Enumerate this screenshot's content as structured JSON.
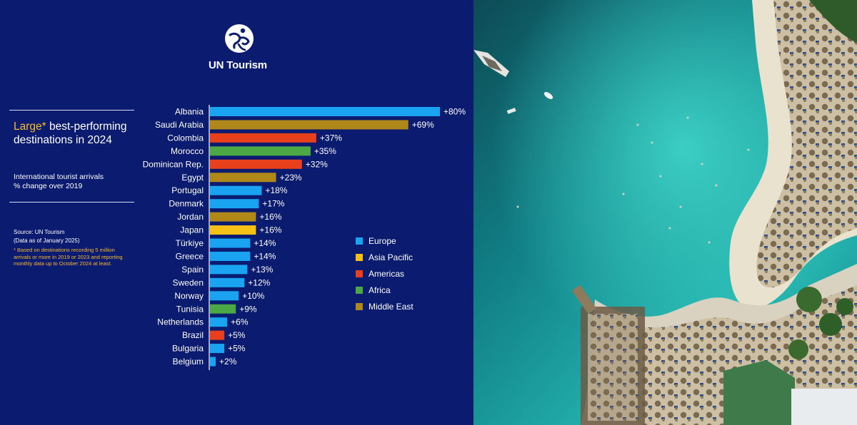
{
  "brand": {
    "name": "UN Tourism"
  },
  "header": {
    "title_highlight": "Large*",
    "title_rest": " best-performing destinations in 2024",
    "subtitle_line1": "International tourist arrivals",
    "subtitle_line2": "% change over 2019"
  },
  "notes": {
    "source_line1": "Source: UN Tourism",
    "source_line2": "(Data as of January 2025)",
    "footnote": "*  Based on destinations recording 5 million\narrivals or more in 2019 or 2023 and reporting\nmonthly data up to October 2024 at least."
  },
  "colors": {
    "Europe": "#1aa3f0",
    "Asia Pacific": "#f5c116",
    "Americas": "#e8401c",
    "Africa": "#4ca845",
    "Middle East": "#b0881a",
    "background": "#0b1b6f"
  },
  "legend": {
    "items": [
      {
        "label": "Europe",
        "color": "#1aa3f0"
      },
      {
        "label": "Asia Pacific",
        "color": "#f5c116"
      },
      {
        "label": "Americas",
        "color": "#e8401c"
      },
      {
        "label": "Africa",
        "color": "#4ca845"
      },
      {
        "label": "Middle East",
        "color": "#b0881a"
      }
    ]
  },
  "chart_data": {
    "type": "bar",
    "orientation": "horizontal",
    "xlim": [
      0,
      80
    ],
    "grid": false,
    "legend_position": "right",
    "categories": [
      "Albania",
      "Saudi Arabia",
      "Colombia",
      "Morocco",
      "Dominican Rep.",
      "Egypt",
      "Portugal",
      "Denmark",
      "Jordan",
      "Japan",
      "Türkiye",
      "Greece",
      "Spain",
      "Sweden",
      "Norway",
      "Tunisia",
      "Netherlands",
      "Brazil",
      "Bulgaria",
      "Belgium"
    ],
    "values": [
      80,
      69,
      37,
      35,
      32,
      23,
      18,
      17,
      16,
      16,
      14,
      14,
      13,
      12,
      10,
      9,
      6,
      5,
      5,
      2
    ],
    "value_labels": [
      "+80%",
      "+69%",
      "+37%",
      "+35%",
      "+32%",
      "+23%",
      "+18%",
      "+17%",
      "+16%",
      "+16%",
      "+14%",
      "+14%",
      "+13%",
      "+12%",
      "+10%",
      "+9%",
      "+6%",
      "+5%",
      "+5%",
      "+2%"
    ],
    "regions": [
      "Europe",
      "Middle East",
      "Americas",
      "Africa",
      "Americas",
      "Middle East",
      "Europe",
      "Europe",
      "Middle East",
      "Asia Pacific",
      "Europe",
      "Europe",
      "Europe",
      "Europe",
      "Europe",
      "Africa",
      "Europe",
      "Americas",
      "Europe",
      "Europe"
    ]
  }
}
